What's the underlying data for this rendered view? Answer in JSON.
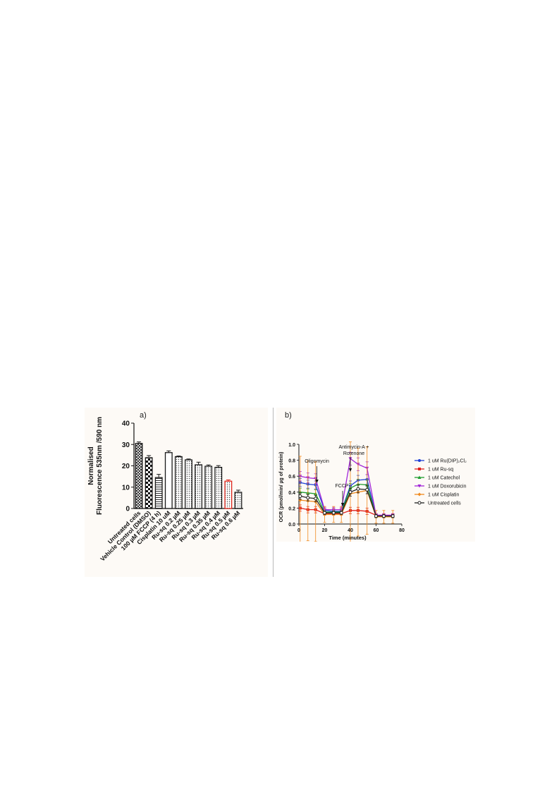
{
  "chart_data": [
    {
      "type": "bar",
      "panel_label": "a)",
      "ylabel": "Normalised\nFluorescence 535nm /590 nm",
      "ylim": [
        0,
        40
      ],
      "yticks": [
        0,
        10,
        20,
        30,
        40
      ],
      "categories": [
        "Untreated cells",
        "Vehicle Control (DMSO)",
        "100 µM FCCP (4 h)",
        "Cisplatin 10 uM",
        "Ru-sq 0.2 µM",
        "Ru-sq 0.25 µM",
        "Ru-sq 0.3 µM",
        "Ru-sq 0.35 µM",
        "Ru-sq 0.4 µM",
        "Ru-sq 0.5 µM",
        "Ru-sq 0.6 µM"
      ],
      "values": [
        30.5,
        23.8,
        14.5,
        26.2,
        24.3,
        22.8,
        20.5,
        19.8,
        19.3,
        12.8,
        7.6
      ],
      "errors": [
        0.7,
        1.0,
        1.5,
        0.8,
        0.3,
        0.4,
        1.2,
        0.6,
        0.8,
        0.6,
        1.0
      ],
      "patterns": [
        "crosshatch",
        "checker",
        "hlines",
        "white",
        "dots",
        "dots",
        "dots",
        "dots",
        "dots",
        "dots",
        "dots"
      ],
      "bar_colors": [
        "#1a1a1a",
        "#1a1a1a",
        "#1a1a1a",
        "#1a1a1a",
        "#1a1a1a",
        "#1a1a1a",
        "#1a1a1a",
        "#1a1a1a",
        "#1a1a1a",
        "#e0281e",
        "#1a1a1a"
      ]
    },
    {
      "type": "line",
      "panel_label": "b)",
      "xlabel": "Time (minutes)",
      "ylabel": "OCR (pmol/min/ µg of protein)",
      "xlim": [
        0,
        80
      ],
      "xticks": [
        0,
        20,
        40,
        60,
        80
      ],
      "ylim": [
        0,
        1.0
      ],
      "yticks": [
        0.0,
        0.2,
        0.4,
        0.6,
        0.8,
        1.0
      ],
      "x": [
        1,
        7,
        13,
        20,
        27,
        33,
        40,
        46,
        53,
        60,
        66,
        73
      ],
      "series": [
        {
          "name": "1 uM Ru(DIP)₂Cl₂",
          "color": "#1f3fd6",
          "marker": "circle",
          "values": [
            0.52,
            0.5,
            0.49,
            0.17,
            0.16,
            0.16,
            0.48,
            0.55,
            0.56,
            0.1,
            0.1,
            0.1
          ],
          "errors": [
            0.05,
            0.05,
            0.05,
            0.02,
            0.02,
            0.02,
            0.06,
            0.06,
            0.06,
            0.02,
            0.02,
            0.02
          ]
        },
        {
          "name": "1 uM Ru-sq",
          "color": "#e0221e",
          "marker": "square",
          "values": [
            0.2,
            0.18,
            0.18,
            0.13,
            0.13,
            0.13,
            0.17,
            0.17,
            0.16,
            0.11,
            0.11,
            0.11
          ],
          "errors": [
            0.04,
            0.04,
            0.04,
            0.02,
            0.02,
            0.02,
            0.04,
            0.04,
            0.04,
            0.02,
            0.02,
            0.02
          ]
        },
        {
          "name": "1 uM Catechol",
          "color": "#1f9e2f",
          "marker": "triangle-up",
          "values": [
            0.4,
            0.39,
            0.38,
            0.15,
            0.15,
            0.15,
            0.45,
            0.5,
            0.49,
            0.1,
            0.1,
            0.1
          ],
          "errors": [
            0.05,
            0.05,
            0.05,
            0.02,
            0.02,
            0.02,
            0.06,
            0.06,
            0.06,
            0.02,
            0.02,
            0.02
          ]
        },
        {
          "name": "1 uM Doxorubicin",
          "color": "#a226d8",
          "marker": "triangle-down",
          "values": [
            0.6,
            0.58,
            0.57,
            0.18,
            0.18,
            0.18,
            0.82,
            0.75,
            0.7,
            0.11,
            0.11,
            0.11
          ],
          "errors": [
            0.06,
            0.06,
            0.06,
            0.03,
            0.03,
            0.03,
            0.08,
            0.08,
            0.08,
            0.02,
            0.02,
            0.02
          ]
        },
        {
          "name": "1 uM Cisplatin",
          "color": "#f08a1e",
          "marker": "diamond",
          "values": [
            0.3,
            0.29,
            0.28,
            0.12,
            0.12,
            0.12,
            0.38,
            0.4,
            0.42,
            0.09,
            0.09,
            0.09
          ],
          "errors": [
            0.55,
            0.5,
            0.5,
            0.1,
            0.1,
            0.1,
            0.65,
            0.55,
            0.55,
            0.08,
            0.08,
            0.08
          ]
        },
        {
          "name": "Untreated cells",
          "color": "#222222",
          "marker": "open-circle",
          "values": [
            0.35,
            0.33,
            0.32,
            0.14,
            0.14,
            0.14,
            0.4,
            0.44,
            0.43,
            0.1,
            0.1,
            0.1
          ],
          "errors": [
            0.04,
            0.04,
            0.04,
            0.02,
            0.02,
            0.02,
            0.05,
            0.05,
            0.05,
            0.02,
            0.02,
            0.02
          ]
        }
      ],
      "annotations": [
        "Oligomycin",
        "FCCP",
        "Antimycin-A +\nRotenone"
      ],
      "annotation_x": [
        14,
        34,
        40
      ],
      "legend_position": "right"
    }
  ]
}
